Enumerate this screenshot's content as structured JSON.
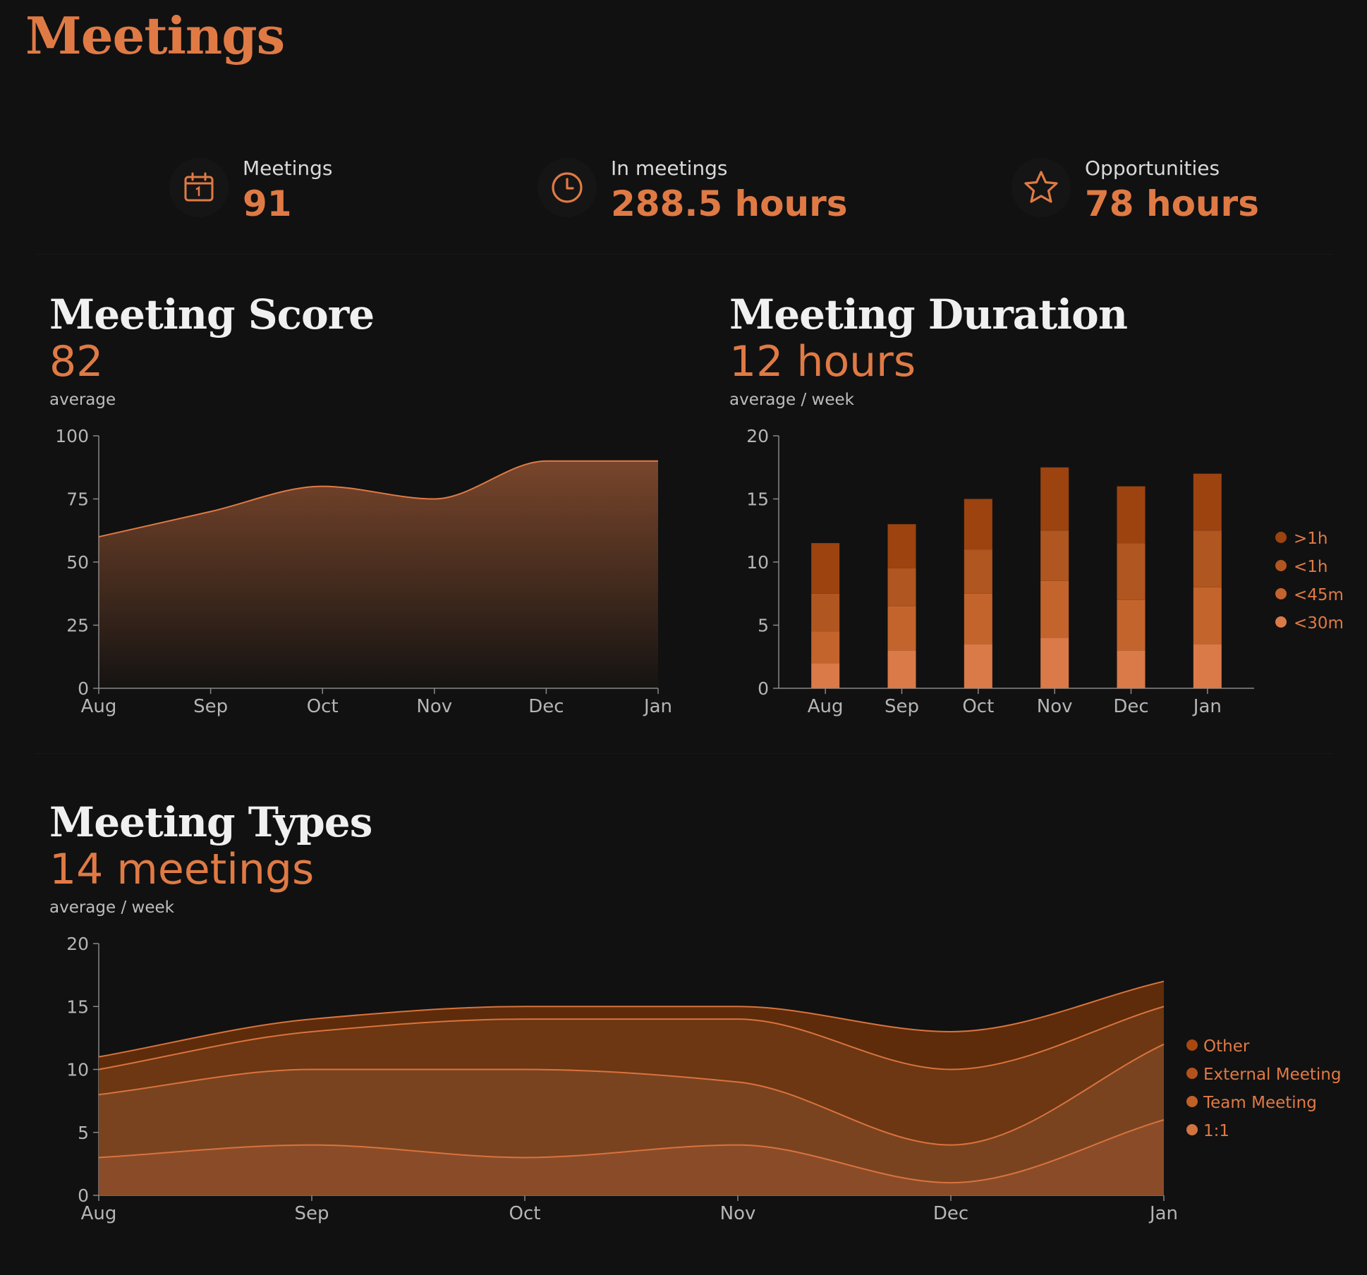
{
  "page": {
    "title": "Meetings"
  },
  "kpis": [
    {
      "label": "Meetings",
      "value": "91",
      "icon": "calendar-icon"
    },
    {
      "label": "In meetings",
      "value": "288.5 hours",
      "icon": "clock-icon"
    },
    {
      "label": "Opportunities",
      "value": "78 hours",
      "icon": "star-icon"
    }
  ],
  "colors": {
    "accent": "#e07a45",
    "background": "#111111",
    "axis": "#888888",
    "tick_text": "#b5b5b5"
  },
  "panels": {
    "score": {
      "title": "Meeting Score",
      "value": "82",
      "subtitle": "average"
    },
    "duration": {
      "title": "Meeting Duration",
      "value": "12 hours",
      "subtitle": "average / week"
    },
    "types": {
      "title": "Meeting Types",
      "value": "14 meetings",
      "subtitle": "average / week"
    }
  },
  "chart_data": [
    {
      "type": "area",
      "x": [
        "Aug",
        "Sep",
        "Oct",
        "Nov",
        "Dec",
        "Jan"
      ],
      "series": [
        {
          "values": [
            60,
            70,
            80,
            75,
            90,
            90
          ]
        }
      ],
      "ylim": [
        0,
        100
      ],
      "yticks": [
        0,
        25,
        50,
        75,
        100
      ],
      "grid": false
    },
    {
      "type": "bar",
      "stacked": true,
      "categories": [
        "Aug",
        "Sep",
        "Oct",
        "Nov",
        "Dec",
        "Jan"
      ],
      "series": [
        {
          "name": "<30m",
          "values": [
            2,
            3,
            3.5,
            4,
            3,
            3.5
          ],
          "color": "#d97a48"
        },
        {
          "name": "<45m",
          "values": [
            2.5,
            3.5,
            4,
            4.5,
            4,
            4.5
          ],
          "color": "#c4642d"
        },
        {
          "name": "<1h",
          "values": [
            3,
            3,
            3.5,
            4,
            4.5,
            4.5
          ],
          "color": "#b05620"
        },
        {
          "name": ">1h",
          "values": [
            4,
            3.5,
            4,
            5,
            4.5,
            4.5
          ],
          "color": "#9c4310"
        }
      ],
      "ylim": [
        0,
        20
      ],
      "yticks": [
        0,
        5,
        10,
        15,
        20
      ],
      "legend": "right",
      "grid": false
    },
    {
      "type": "area",
      "stacked": true,
      "x": [
        "Aug",
        "Sep",
        "Oct",
        "Nov",
        "Dec",
        "Jan"
      ],
      "series": [
        {
          "name": "1:1",
          "values": [
            3,
            4,
            3,
            4,
            1,
            6
          ],
          "color": "#8a4c28"
        },
        {
          "name": "Team Meeting",
          "values": [
            5,
            6,
            7,
            5,
            3,
            6
          ],
          "color": "#7a4320"
        },
        {
          "name": "External Meeting",
          "values": [
            2,
            3,
            4,
            5,
            6,
            3
          ],
          "color": "#6c3712"
        },
        {
          "name": "Other",
          "values": [
            1,
            1,
            1,
            1,
            3,
            2
          ],
          "color": "#5e2c0a"
        }
      ],
      "ylim": [
        0,
        20
      ],
      "yticks": [
        0,
        5,
        10,
        15,
        20
      ],
      "legend": "right",
      "grid": false
    }
  ]
}
